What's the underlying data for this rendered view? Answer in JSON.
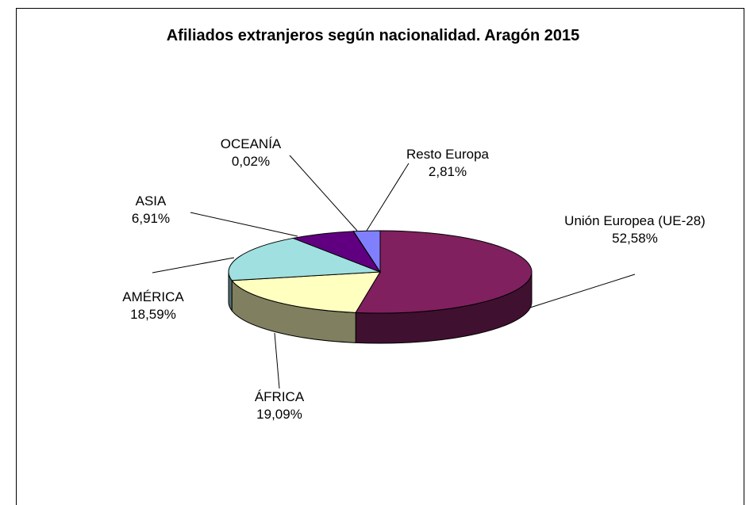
{
  "chart_data": {
    "type": "pie3d",
    "title": "Afiliados extranjeros según nacionalidad. Aragón 2015",
    "categories": [
      "Unión Europea (UE-28)",
      "ÁFRICA",
      "AMÉRICA",
      "ASIA",
      "OCEANÍA",
      "Resto Europa"
    ],
    "values": [
      52.58,
      19.09,
      18.59,
      6.91,
      0.02,
      2.81
    ],
    "value_labels": [
      "52,58%",
      "19,09%",
      "18,59%",
      "6,91%",
      "0,02%",
      "2,81%"
    ],
    "colors": [
      "#80205f",
      "#ffffc0",
      "#a0e0e0",
      "#600080",
      "#0070c0",
      "#8080ff"
    ]
  }
}
